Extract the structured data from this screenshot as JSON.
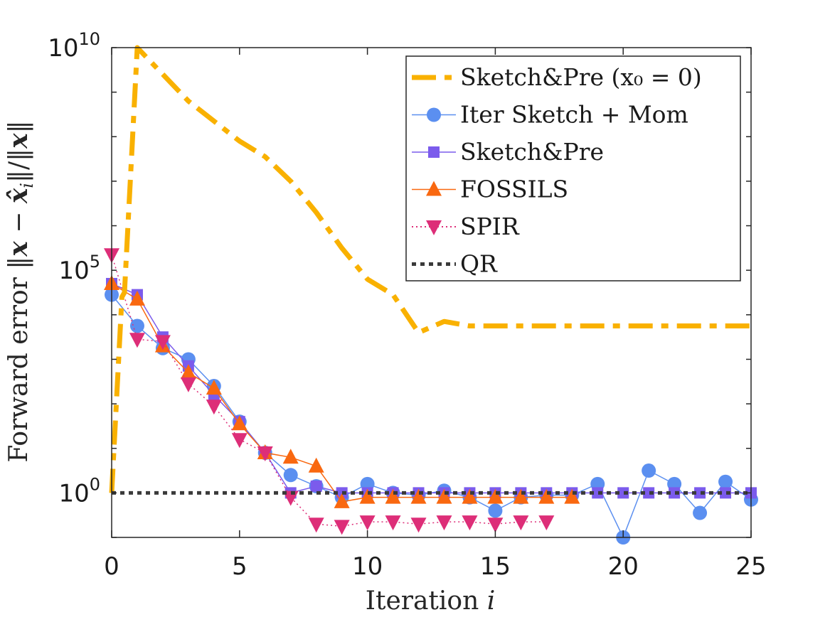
{
  "chart_data": {
    "type": "line",
    "title": "",
    "xlabel": "Iteration i",
    "ylabel": "Forward error ‖x − x̂ᵢ‖/‖x‖",
    "xlim": [
      0,
      25
    ],
    "ylim_log10": [
      -1,
      10
    ],
    "y_scale": "log",
    "x_ticks": [
      0,
      5,
      10,
      15,
      20,
      25
    ],
    "x_tick_labels": [
      "0",
      "5",
      "10",
      "15",
      "20",
      "25"
    ],
    "y_tick_labels": [
      {
        "base": "10",
        "exp": "0",
        "log10": 0
      },
      {
        "base": "10",
        "exp": "5",
        "log10": 5
      },
      {
        "base": "10",
        "exp": "10",
        "log10": 10
      }
    ],
    "legend_position": "top-right",
    "series": [
      {
        "name": "Sketch&Pre (x₀ = 0)",
        "style": "dashdot",
        "marker": "none",
        "color": "#f9b100",
        "x": [
          0,
          0.4,
          0.5,
          1,
          3,
          5,
          6,
          7,
          8,
          9,
          10,
          11,
          12,
          13,
          14,
          15,
          16,
          17,
          18,
          19,
          20,
          21,
          22,
          23,
          24,
          25
        ],
        "log10_y": [
          0.0,
          4.4,
          4.5,
          10.0,
          8.8,
          7.9,
          7.55,
          7.0,
          6.3,
          5.5,
          4.8,
          4.45,
          3.6,
          3.85,
          3.75,
          3.75,
          3.75,
          3.75,
          3.75,
          3.75,
          3.75,
          3.75,
          3.75,
          3.75,
          3.75,
          3.75
        ]
      },
      {
        "name": "Iter Sketch + Mom",
        "style": "solid",
        "marker": "circle",
        "color": "#5b8ff0",
        "x": [
          0,
          1,
          2,
          3,
          4,
          5,
          6,
          7,
          8,
          9,
          10,
          11,
          12,
          13,
          14,
          15,
          16,
          17,
          18,
          19,
          20,
          21,
          22,
          23,
          24,
          25
        ],
        "log10_y": [
          4.45,
          3.75,
          3.25,
          3.0,
          2.4,
          1.6,
          0.9,
          0.4,
          0.15,
          -0.1,
          0.2,
          0.0,
          -0.05,
          0.05,
          -0.1,
          -0.4,
          -0.1,
          -0.05,
          -0.05,
          0.2,
          -1.0,
          0.5,
          0.2,
          -0.45,
          0.25,
          -0.15
        ]
      },
      {
        "name": "Sketch&Pre",
        "style": "solid",
        "marker": "square",
        "color": "#7b5bec",
        "x": [
          0,
          1,
          2,
          3,
          4,
          5,
          6,
          7,
          8,
          9,
          10,
          11,
          12,
          13,
          14,
          15,
          16,
          17,
          18,
          19,
          20,
          21,
          22,
          23,
          24,
          25
        ],
        "log10_y": [
          4.7,
          4.45,
          3.5,
          2.85,
          2.2,
          1.6,
          0.9,
          0.0,
          0.15,
          0.0,
          0.0,
          0.0,
          0.0,
          0.0,
          0.0,
          0.0,
          0.0,
          0.0,
          0.0,
          0.0,
          0.0,
          0.0,
          0.0,
          0.0,
          0.0,
          0.0
        ]
      },
      {
        "name": "FOSSILS",
        "style": "solid",
        "marker": "triangle-up",
        "color": "#f96810",
        "x": [
          0,
          1,
          2,
          3,
          4,
          5,
          6,
          7,
          8,
          9,
          10,
          11,
          12,
          13,
          14,
          15,
          16,
          17,
          18
        ],
        "log10_y": [
          4.7,
          4.35,
          3.3,
          2.7,
          2.35,
          1.55,
          0.9,
          0.8,
          0.6,
          -0.2,
          -0.1,
          -0.1,
          -0.1,
          -0.1,
          -0.1,
          -0.1,
          -0.1,
          -0.1,
          -0.1
        ]
      },
      {
        "name": "SPIR",
        "style": "dotted",
        "marker": "triangle-down",
        "color": "#dd2e78",
        "x": [
          0,
          1,
          2,
          3,
          4,
          5,
          6,
          7,
          8,
          9,
          10,
          11,
          12,
          13,
          14,
          15,
          16,
          17
        ],
        "log10_y": [
          5.35,
          3.45,
          3.4,
          2.45,
          1.95,
          1.2,
          0.9,
          -0.1,
          -0.7,
          -0.75,
          -0.65,
          -0.65,
          -0.7,
          -0.65,
          -0.65,
          -0.7,
          -0.65,
          -0.65
        ]
      },
      {
        "name": "QR",
        "style": "dotted",
        "marker": "none",
        "color": "#3a3a3a",
        "x": [
          0,
          25
        ],
        "log10_y": [
          0.0,
          0.0
        ]
      }
    ]
  }
}
